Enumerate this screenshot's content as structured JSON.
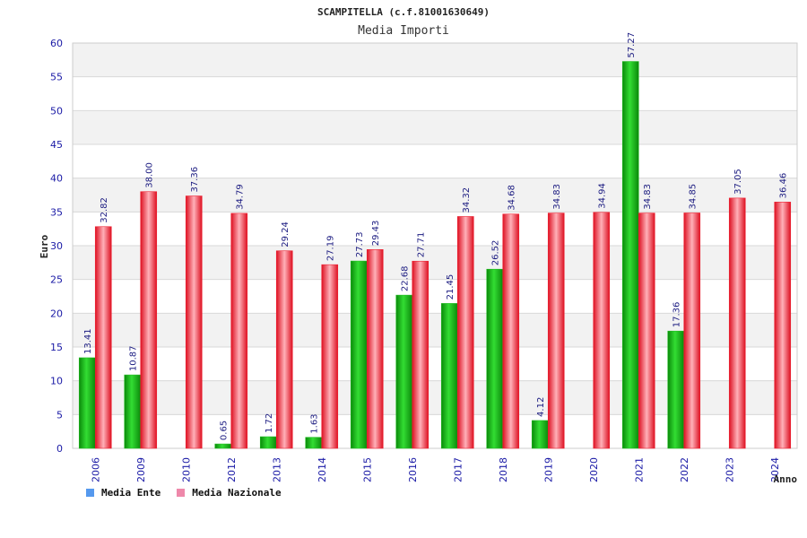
{
  "colors": {
    "ente": "#22bb22",
    "nazionale": "#ee2233",
    "legend_ente": "#5599ee",
    "legend_nazionale": "#ee88aa"
  },
  "chart_data": {
    "type": "bar",
    "title": "SCAMPITELLA (c.f.81001630649)",
    "subtitle": "Media Importi",
    "xlabel": "Anno",
    "ylabel": "Euro",
    "ylim": [
      0,
      60
    ],
    "yticks": [
      0,
      5,
      10,
      15,
      20,
      25,
      30,
      35,
      40,
      45,
      50,
      55,
      60
    ],
    "grid": true,
    "legend_position": "bottom-left",
    "categories": [
      "2006",
      "2009",
      "2010",
      "2012",
      "2013",
      "2014",
      "2015",
      "2016",
      "2017",
      "2018",
      "2019",
      "2020",
      "2021",
      "2022",
      "2023",
      "2024"
    ],
    "series": [
      {
        "name": "Media Ente",
        "values": [
          13.41,
          10.87,
          null,
          0.65,
          1.72,
          1.63,
          27.73,
          22.68,
          21.45,
          26.52,
          4.12,
          null,
          57.27,
          17.36,
          null,
          null
        ],
        "labels": [
          "13.41",
          "10.87",
          null,
          "0.65",
          "1.72",
          "1.63",
          "27.73",
          "22.68",
          "21.45",
          "26.52",
          "4.12",
          null,
          "57.27",
          "17.36",
          null,
          null
        ]
      },
      {
        "name": "Media Nazionale",
        "values": [
          32.82,
          38.0,
          37.36,
          34.79,
          29.24,
          27.19,
          29.43,
          27.71,
          34.32,
          34.68,
          34.83,
          34.94,
          34.83,
          34.85,
          37.05,
          36.46
        ],
        "labels": [
          "32.82",
          "38.00",
          "37.36",
          "34.79",
          "29.24",
          "27.19",
          "29.43",
          "27.71",
          "34.32",
          "34.68",
          "34.83",
          "34.94",
          "34.83",
          "34.85",
          "37.05",
          "36.46"
        ]
      }
    ]
  }
}
